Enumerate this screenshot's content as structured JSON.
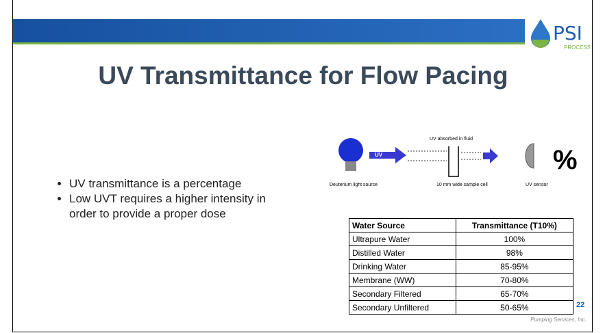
{
  "header": {
    "logo_text": "PSI",
    "logo_sub": "PROCESS"
  },
  "title": "UV Transmittance for Flow Pacing",
  "bullets": [
    "UV transmittance is a percentage",
    "Low UVT requires a higher intensity in order to provide a proper dose"
  ],
  "diagram": {
    "uv_label": "UV",
    "absorbed_label": "UV absorbed in fluid",
    "source_label": "Deuterium light source",
    "cell_label": "10 mm wide sample cell",
    "sensor_label": "UV sensor",
    "percent_sign": "%"
  },
  "table": {
    "headers": [
      "Water Source",
      "Transmittance (T10%)"
    ],
    "rows": [
      [
        "Ultrapure Water",
        "100%"
      ],
      [
        "Distilled Water",
        "98%"
      ],
      [
        "Drinking Water",
        "85-95%"
      ],
      [
        "Membrane (WW)",
        "70-80%"
      ],
      [
        "Secondary Filtered",
        "65-70%"
      ],
      [
        "Secondary Unfiltered",
        "50-65%"
      ]
    ]
  },
  "page_number": "22",
  "footer": "Pumping Services, Inc."
}
